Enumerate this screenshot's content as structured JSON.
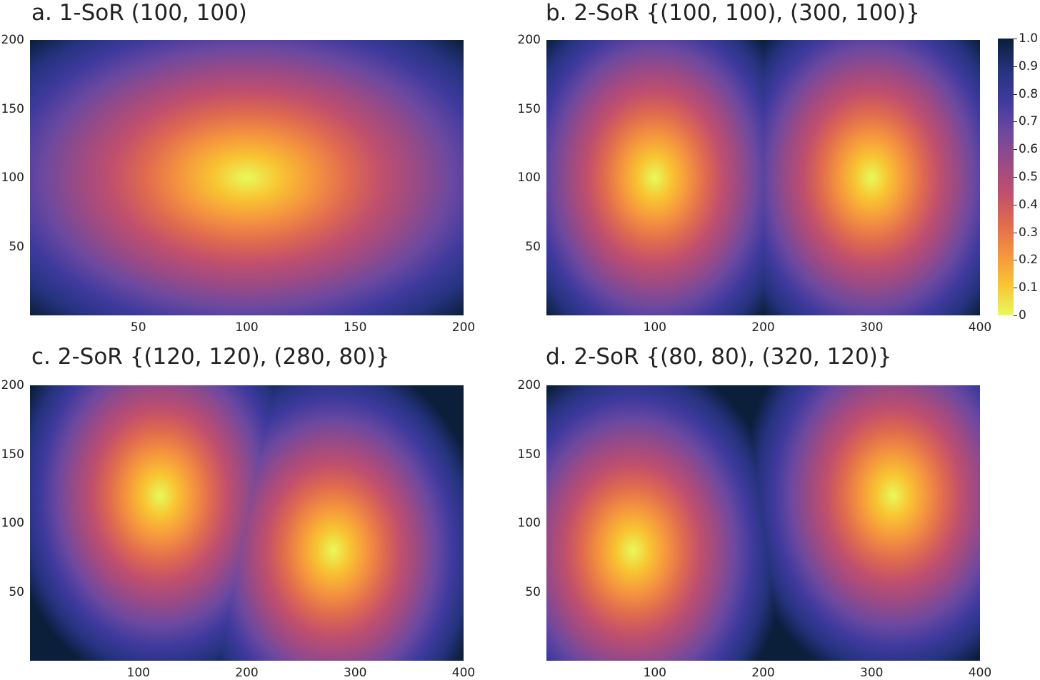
{
  "chart_data": [
    {
      "type": "heatmap",
      "title": "a. 1-SoR (100, 100)",
      "sources": [
        [
          100,
          100
        ]
      ],
      "xlim": [
        0,
        200
      ],
      "ylim": [
        0,
        200
      ],
      "xticks": [
        50,
        100,
        150,
        200
      ],
      "yticks": [
        50,
        100,
        150,
        200
      ],
      "value_range": [
        0,
        1
      ]
    },
    {
      "type": "heatmap",
      "title": "b. 2-SoR {(100, 100), (300, 100)}",
      "sources": [
        [
          100,
          100
        ],
        [
          300,
          100
        ]
      ],
      "xlim": [
        0,
        400
      ],
      "ylim": [
        0,
        200
      ],
      "xticks": [
        100,
        200,
        300,
        400
      ],
      "yticks": [
        50,
        100,
        150,
        200
      ],
      "value_range": [
        0,
        1
      ]
    },
    {
      "type": "heatmap",
      "title": "c. 2-SoR {(120, 120), (280, 80)}",
      "sources": [
        [
          120,
          120
        ],
        [
          280,
          80
        ]
      ],
      "xlim": [
        0,
        400
      ],
      "ylim": [
        0,
        200
      ],
      "xticks": [
        100,
        200,
        300,
        400
      ],
      "yticks": [
        50,
        100,
        150,
        200
      ],
      "value_range": [
        0,
        1
      ]
    },
    {
      "type": "heatmap",
      "title": "d. 2-SoR {(80, 80), (320, 120)}",
      "sources": [
        [
          80,
          80
        ],
        [
          320,
          120
        ]
      ],
      "xlim": [
        0,
        400
      ],
      "ylim": [
        0,
        200
      ],
      "xticks": [
        100,
        200,
        300,
        400
      ],
      "yticks": [
        50,
        100,
        150,
        200
      ],
      "value_range": [
        0,
        1
      ]
    }
  ],
  "colorbar": {
    "labels": [
      "1.0",
      "0.9",
      "0.8",
      "0.7",
      "0.6",
      "0.5",
      "0.4",
      "0.3",
      "0.2",
      "0.1",
      "0"
    ],
    "colormap": [
      "#e8fa5b",
      "#f9c432",
      "#f5943f",
      "#e06a50",
      "#c04f6e",
      "#9a4a86",
      "#6c49a0",
      "#3f3a9e",
      "#25337e",
      "#0b1e3a"
    ]
  }
}
